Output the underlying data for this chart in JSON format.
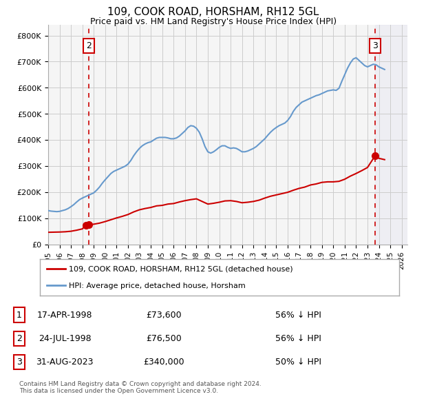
{
  "title": "109, COOK ROAD, HORSHAM, RH12 5GL",
  "subtitle": "Price paid vs. HM Land Registry's House Price Index (HPI)",
  "xlim": [
    1995.0,
    2026.5
  ],
  "ylim": [
    0,
    840000
  ],
  "yticks": [
    0,
    100000,
    200000,
    300000,
    400000,
    500000,
    600000,
    700000,
    800000
  ],
  "ytick_labels": [
    "£0",
    "£100K",
    "£200K",
    "£300K",
    "£400K",
    "£500K",
    "£600K",
    "£700K",
    "£800K"
  ],
  "xticks": [
    1995,
    1996,
    1997,
    1998,
    1999,
    2000,
    2001,
    2002,
    2003,
    2004,
    2005,
    2006,
    2007,
    2008,
    2009,
    2010,
    2011,
    2012,
    2013,
    2014,
    2015,
    2016,
    2017,
    2018,
    2019,
    2020,
    2021,
    2022,
    2023,
    2024,
    2025,
    2026
  ],
  "red_line_color": "#cc0000",
  "blue_line_color": "#6699cc",
  "grid_color": "#cccccc",
  "bg_color": "#ffffff",
  "plot_bg_color": "#f5f5f5",
  "legend_box_color": "#ffffff",
  "legend_border_color": "#aaaaaa",
  "transaction_marker_color": "#cc0000",
  "shade_color": "#ddddee",
  "transactions": [
    {
      "id": 1,
      "date": 1998.29,
      "price": 73600,
      "label": "1"
    },
    {
      "id": 2,
      "date": 1998.56,
      "price": 76500,
      "label": "2"
    },
    {
      "id": 3,
      "date": 2023.67,
      "price": 340000,
      "label": "3"
    }
  ],
  "vline_dates": [
    1998.56,
    2023.67
  ],
  "vline_labels": [
    "2",
    "3"
  ],
  "table_rows": [
    {
      "num": "1",
      "date": "17-APR-1998",
      "price": "£73,600",
      "hpi": "56% ↓ HPI"
    },
    {
      "num": "2",
      "date": "24-JUL-1998",
      "price": "£76,500",
      "hpi": "56% ↓ HPI"
    },
    {
      "num": "3",
      "date": "31-AUG-2023",
      "price": "£340,000",
      "hpi": "50% ↓ HPI"
    }
  ],
  "legend_entries": [
    {
      "label": "109, COOK ROAD, HORSHAM, RH12 5GL (detached house)",
      "color": "#cc0000",
      "lw": 2
    },
    {
      "label": "HPI: Average price, detached house, Horsham",
      "color": "#6699cc",
      "lw": 2
    }
  ],
  "footer_text": "Contains HM Land Registry data © Crown copyright and database right 2024.\nThis data is licensed under the Open Government Licence v3.0.",
  "hpi_data": {
    "years": [
      1995.0,
      1995.25,
      1995.5,
      1995.75,
      1996.0,
      1996.25,
      1996.5,
      1996.75,
      1997.0,
      1997.25,
      1997.5,
      1997.75,
      1998.0,
      1998.25,
      1998.5,
      1998.75,
      1999.0,
      1999.25,
      1999.5,
      1999.75,
      2000.0,
      2000.25,
      2000.5,
      2000.75,
      2001.0,
      2001.25,
      2001.5,
      2001.75,
      2002.0,
      2002.25,
      2002.5,
      2002.75,
      2003.0,
      2003.25,
      2003.5,
      2003.75,
      2004.0,
      2004.25,
      2004.5,
      2004.75,
      2005.0,
      2005.25,
      2005.5,
      2005.75,
      2006.0,
      2006.25,
      2006.5,
      2006.75,
      2007.0,
      2007.25,
      2007.5,
      2007.75,
      2008.0,
      2008.25,
      2008.5,
      2008.75,
      2009.0,
      2009.25,
      2009.5,
      2009.75,
      2010.0,
      2010.25,
      2010.5,
      2010.75,
      2011.0,
      2011.25,
      2011.5,
      2011.75,
      2012.0,
      2012.25,
      2012.5,
      2012.75,
      2013.0,
      2013.25,
      2013.5,
      2013.75,
      2014.0,
      2014.25,
      2014.5,
      2014.75,
      2015.0,
      2015.25,
      2015.5,
      2015.75,
      2016.0,
      2016.25,
      2016.5,
      2016.75,
      2017.0,
      2017.25,
      2017.5,
      2017.75,
      2018.0,
      2018.25,
      2018.5,
      2018.75,
      2019.0,
      2019.25,
      2019.5,
      2019.75,
      2020.0,
      2020.25,
      2020.5,
      2020.75,
      2021.0,
      2021.25,
      2021.5,
      2021.75,
      2022.0,
      2022.25,
      2022.5,
      2022.75,
      2023.0,
      2023.25,
      2023.5,
      2023.75,
      2024.0,
      2024.25,
      2024.5
    ],
    "values": [
      130000,
      128000,
      127000,
      126000,
      127000,
      130000,
      133000,
      138000,
      145000,
      153000,
      163000,
      172000,
      178000,
      183000,
      188000,
      193000,
      198000,
      208000,
      220000,
      235000,
      248000,
      260000,
      272000,
      280000,
      285000,
      290000,
      295000,
      300000,
      308000,
      322000,
      340000,
      355000,
      368000,
      378000,
      385000,
      390000,
      393000,
      400000,
      407000,
      410000,
      410000,
      410000,
      408000,
      405000,
      405000,
      408000,
      415000,
      425000,
      435000,
      448000,
      455000,
      453000,
      445000,
      430000,
      405000,
      375000,
      355000,
      350000,
      355000,
      363000,
      372000,
      378000,
      378000,
      372000,
      368000,
      370000,
      368000,
      362000,
      355000,
      355000,
      358000,
      363000,
      368000,
      375000,
      385000,
      395000,
      405000,
      418000,
      430000,
      440000,
      448000,
      455000,
      460000,
      465000,
      475000,
      490000,
      510000,
      525000,
      535000,
      545000,
      550000,
      555000,
      560000,
      565000,
      570000,
      573000,
      578000,
      583000,
      588000,
      590000,
      592000,
      590000,
      598000,
      625000,
      650000,
      675000,
      695000,
      710000,
      715000,
      705000,
      695000,
      685000,
      680000,
      685000,
      690000,
      688000,
      680000,
      675000,
      670000
    ]
  },
  "red_line_data": {
    "years": [
      1995.0,
      1995.5,
      1996.0,
      1996.5,
      1997.0,
      1997.5,
      1998.0,
      1998.29,
      1998.56,
      1999.0,
      1999.5,
      2000.0,
      2000.5,
      2001.0,
      2001.5,
      2002.0,
      2002.5,
      2003.0,
      2003.5,
      2004.0,
      2004.5,
      2005.0,
      2005.5,
      2006.0,
      2006.5,
      2007.0,
      2007.5,
      2008.0,
      2008.5,
      2009.0,
      2009.5,
      2010.0,
      2010.5,
      2011.0,
      2011.5,
      2012.0,
      2012.5,
      2013.0,
      2013.5,
      2014.0,
      2014.5,
      2015.0,
      2015.5,
      2016.0,
      2016.5,
      2017.0,
      2017.5,
      2018.0,
      2018.5,
      2019.0,
      2019.5,
      2020.0,
      2020.5,
      2021.0,
      2021.5,
      2022.0,
      2022.5,
      2023.0,
      2023.67,
      2024.0,
      2024.5
    ],
    "values": [
      47000,
      47500,
      48000,
      49000,
      51000,
      55000,
      60000,
      73600,
      76500,
      78000,
      82000,
      88000,
      95000,
      102000,
      108000,
      115000,
      125000,
      133000,
      138000,
      142000,
      148000,
      150000,
      155000,
      157000,
      163000,
      168000,
      172000,
      175000,
      165000,
      155000,
      158000,
      162000,
      167000,
      168000,
      165000,
      160000,
      162000,
      165000,
      170000,
      178000,
      185000,
      190000,
      195000,
      200000,
      208000,
      215000,
      220000,
      228000,
      232000,
      238000,
      240000,
      240000,
      242000,
      250000,
      262000,
      272000,
      283000,
      295000,
      340000,
      330000,
      325000
    ]
  }
}
